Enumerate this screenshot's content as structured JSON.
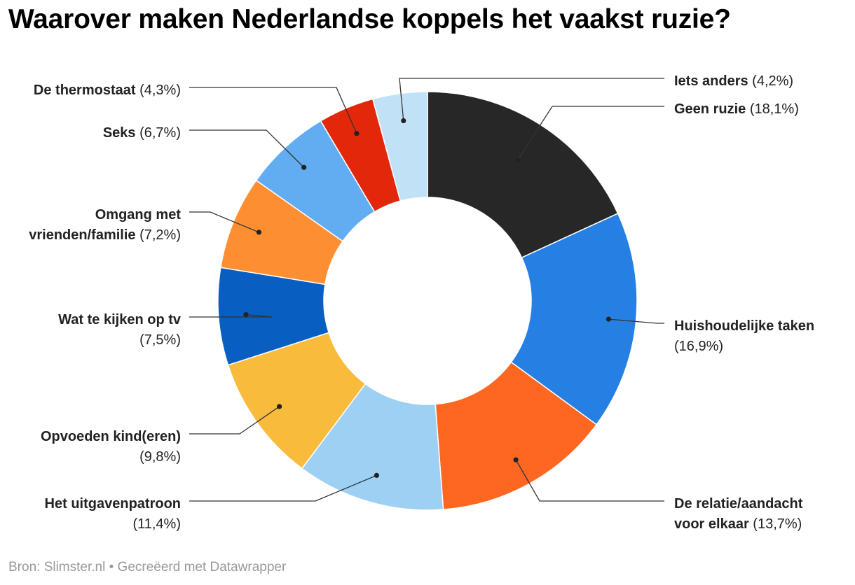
{
  "title": "Waarover maken Nederlandse koppels het vaakst ruzie?",
  "source": "Bron: Slimster.nl • Gecreëerd met Datawrapper",
  "chart_data": {
    "type": "pie",
    "variant": "donut",
    "title": "Waarover maken Nederlandse koppels het vaakst ruzie?",
    "categories": [
      "Geen ruzie",
      "Huishoudelijke taken",
      "De relatie/aandacht voor elkaar",
      "Het uitgavenpatroon",
      "Opvoeden kind(eren)",
      "Wat te kijken op tv",
      "Omgang met vrienden/familie",
      "Seks",
      "De thermostaat",
      "Iets anders"
    ],
    "values": [
      18.1,
      16.9,
      13.7,
      11.4,
      9.8,
      7.5,
      7.2,
      6.7,
      4.3,
      4.2
    ],
    "value_labels": [
      "(18,1%)",
      "(16,9%)",
      "(13,7%)",
      "(11,4%)",
      "(9,8%)",
      "(7,5%)",
      "(7,2%)",
      "(6,7%)",
      "(4,3%)",
      "(4,2%)"
    ],
    "colors": [
      "#272727",
      "#2680e3",
      "#fe6721",
      "#9ed0f3",
      "#f8bb3b",
      "#095fc1",
      "#fd8f32",
      "#62adf2",
      "#e3270b",
      "#c1e2f6"
    ],
    "unit": "%"
  }
}
